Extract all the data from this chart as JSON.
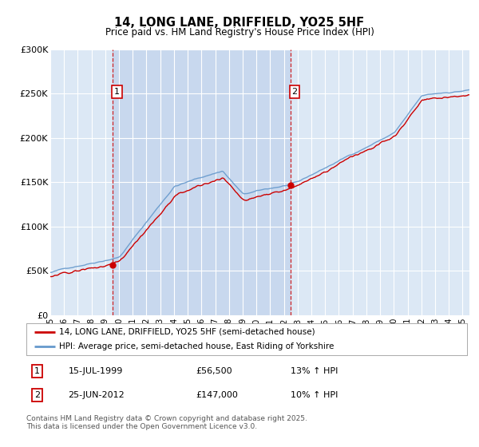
{
  "title": "14, LONG LANE, DRIFFIELD, YO25 5HF",
  "subtitle": "Price paid vs. HM Land Registry's House Price Index (HPI)",
  "legend_line1": "14, LONG LANE, DRIFFIELD, YO25 5HF (semi-detached house)",
  "legend_line2": "HPI: Average price, semi-detached house, East Riding of Yorkshire",
  "annotation1_date": "15-JUL-1999",
  "annotation1_price": 56500,
  "annotation1_hpi": "13% ↑ HPI",
  "annotation2_date": "25-JUN-2012",
  "annotation2_price": 147000,
  "annotation2_hpi": "10% ↑ HPI",
  "footer": "Contains HM Land Registry data © Crown copyright and database right 2025.\nThis data is licensed under the Open Government Licence v3.0.",
  "ylim": [
    0,
    300000
  ],
  "yticks": [
    0,
    50000,
    100000,
    150000,
    200000,
    250000,
    300000
  ],
  "ytick_labels": [
    "£0",
    "£50K",
    "£100K",
    "£150K",
    "£200K",
    "£250K",
    "£300K"
  ],
  "line_color_red": "#cc0000",
  "line_color_blue": "#6699cc",
  "vline_color": "#cc0000",
  "bg_color": "#dce8f5",
  "shade_color": "#c8d8ee",
  "grid_color": "#ffffff",
  "annotation_box_color": "#cc0000",
  "vline1_x": 1999.54,
  "vline2_x": 2012.48,
  "price_dot1_y": 56500,
  "price_dot2_y": 147000,
  "xmin": 1995.0,
  "xmax": 2025.5
}
